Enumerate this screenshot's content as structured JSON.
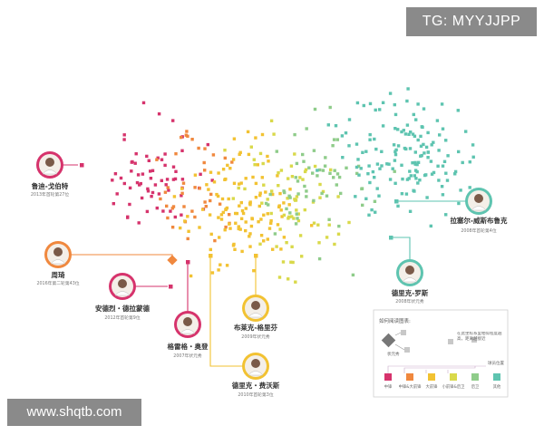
{
  "watermarks": {
    "top": "TG: MYYJJPP",
    "bottom": "www.shqtb.com"
  },
  "colors": {
    "red": "#d6336c",
    "orange": "#f0883e",
    "yellow": "#f2c232",
    "lime": "#d9d94a",
    "green": "#8fcc8a",
    "teal": "#5ec4b0",
    "gray": "#b8b8b8"
  },
  "chart_data": {
    "type": "scatter",
    "title": "",
    "xlabel": "",
    "ylabel": "",
    "grid": false,
    "legend_position": "bottom-right",
    "categories": [
      "中锋",
      "中锋&大前锋",
      "大前锋",
      "小前锋&后卫",
      "后卫",
      "其他"
    ],
    "category_colors": [
      "#d6336c",
      "#f0883e",
      "#f2c232",
      "#d9d94a",
      "#8fcc8a",
      "#5ec4b0"
    ],
    "legend": {
      "heading": "如何阅读图表:",
      "note": "在此坐标系里相似程度越高，距离越接近",
      "marker_label": "状元秀",
      "series_label": "球员位置"
    },
    "players": [
      {
        "name": "鲁迪-戈伯特",
        "note": "2013年首轮第27位",
        "color": "#d6336c"
      },
      {
        "name": "周琦",
        "note": "2016年第二轮第43位",
        "color": "#f0883e"
      },
      {
        "name": "安德烈・德拉蒙德",
        "note": "2012年首轮第9位",
        "color": "#d6336c"
      },
      {
        "name": "格雷格・奥登",
        "note": "2007年状元秀",
        "color": "#d6336c"
      },
      {
        "name": "布莱克-格里芬",
        "note": "2009年状元秀",
        "color": "#f2c232"
      },
      {
        "name": "德里克・费沃斯",
        "note": "2010年首轮第3位",
        "color": "#f2c232"
      },
      {
        "name": "德里克-罗斯",
        "note": "2008年状元秀",
        "color": "#5ec4b0"
      },
      {
        "name": "拉塞尔-威斯布鲁克",
        "note": "2008年首轮第4位",
        "color": "#5ec4b0"
      }
    ]
  }
}
